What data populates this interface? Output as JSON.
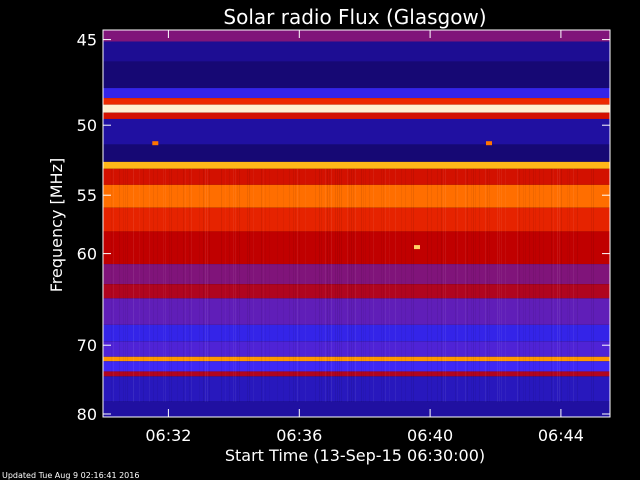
{
  "chart_data": {
    "type": "heatmap",
    "title": "Solar radio Flux (Glasgow)",
    "xlabel": "Start Time (13-Sep-15 06:30:00)",
    "ylabel": "Frequency [MHz]",
    "x_range_minutes": [
      0,
      15.5
    ],
    "x_ticks": [
      {
        "label": "06:32",
        "minute": 2
      },
      {
        "label": "06:36",
        "minute": 6
      },
      {
        "label": "06:40",
        "minute": 10
      },
      {
        "label": "06:44",
        "minute": 14
      }
    ],
    "y_range_mhz": [
      44.5,
      80.5
    ],
    "y_scale": "reciprocal",
    "y_ticks": [
      45,
      50,
      55,
      60,
      70,
      80
    ],
    "colormap": [
      "#000000",
      "#1a0a8a",
      "#3a2aff",
      "#c00000",
      "#ff3a00",
      "#ffb000",
      "#ffffff"
    ],
    "frequency_bands": [
      {
        "from_mhz": 44.5,
        "to_mhz": 45.1,
        "level": 0.42
      },
      {
        "from_mhz": 45.1,
        "to_mhz": 46.2,
        "level": 0.18
      },
      {
        "from_mhz": 46.2,
        "to_mhz": 47.7,
        "level": 0.14
      },
      {
        "from_mhz": 47.7,
        "to_mhz": 48.3,
        "level": 0.3
      },
      {
        "from_mhz": 48.3,
        "to_mhz": 48.7,
        "level": 0.62
      },
      {
        "from_mhz": 48.7,
        "to_mhz": 49.2,
        "level": 0.97
      },
      {
        "from_mhz": 49.2,
        "to_mhz": 49.6,
        "level": 0.55
      },
      {
        "from_mhz": 49.6,
        "to_mhz": 51.3,
        "level": 0.2
      },
      {
        "from_mhz": 51.3,
        "to_mhz": 52.5,
        "level": 0.14
      },
      {
        "from_mhz": 52.5,
        "to_mhz": 53.0,
        "level": 0.85
      },
      {
        "from_mhz": 53.0,
        "to_mhz": 54.2,
        "level": 0.55
      },
      {
        "from_mhz": 54.2,
        "to_mhz": 56.0,
        "level": 0.74
      },
      {
        "from_mhz": 56.0,
        "to_mhz": 58.0,
        "level": 0.6
      },
      {
        "from_mhz": 58.0,
        "to_mhz": 61.0,
        "level": 0.5
      },
      {
        "from_mhz": 61.0,
        "to_mhz": 63.0,
        "level": 0.42
      },
      {
        "from_mhz": 63.0,
        "to_mhz": 64.5,
        "level": 0.48
      },
      {
        "from_mhz": 64.5,
        "to_mhz": 67.5,
        "level": 0.38
      },
      {
        "from_mhz": 67.5,
        "to_mhz": 69.5,
        "level": 0.3
      },
      {
        "from_mhz": 69.5,
        "to_mhz": 71.5,
        "level": 0.36
      },
      {
        "from_mhz": 71.5,
        "to_mhz": 72.1,
        "level": 0.8
      },
      {
        "from_mhz": 72.1,
        "to_mhz": 73.5,
        "level": 0.34
      },
      {
        "from_mhz": 73.5,
        "to_mhz": 74.2,
        "level": 0.48
      },
      {
        "from_mhz": 74.2,
        "to_mhz": 78.0,
        "level": 0.24
      },
      {
        "from_mhz": 78.0,
        "to_mhz": 80.5,
        "level": 0.2
      }
    ],
    "bursts": [
      {
        "minute": 9.6,
        "mhz": 59.4,
        "level": 0.9
      },
      {
        "minute": 1.6,
        "mhz": 51.2,
        "level": 0.75
      },
      {
        "minute": 11.8,
        "mhz": 51.2,
        "level": 0.75
      }
    ],
    "footer": "Updated Tue Aug  9 02:16:41 2016"
  }
}
